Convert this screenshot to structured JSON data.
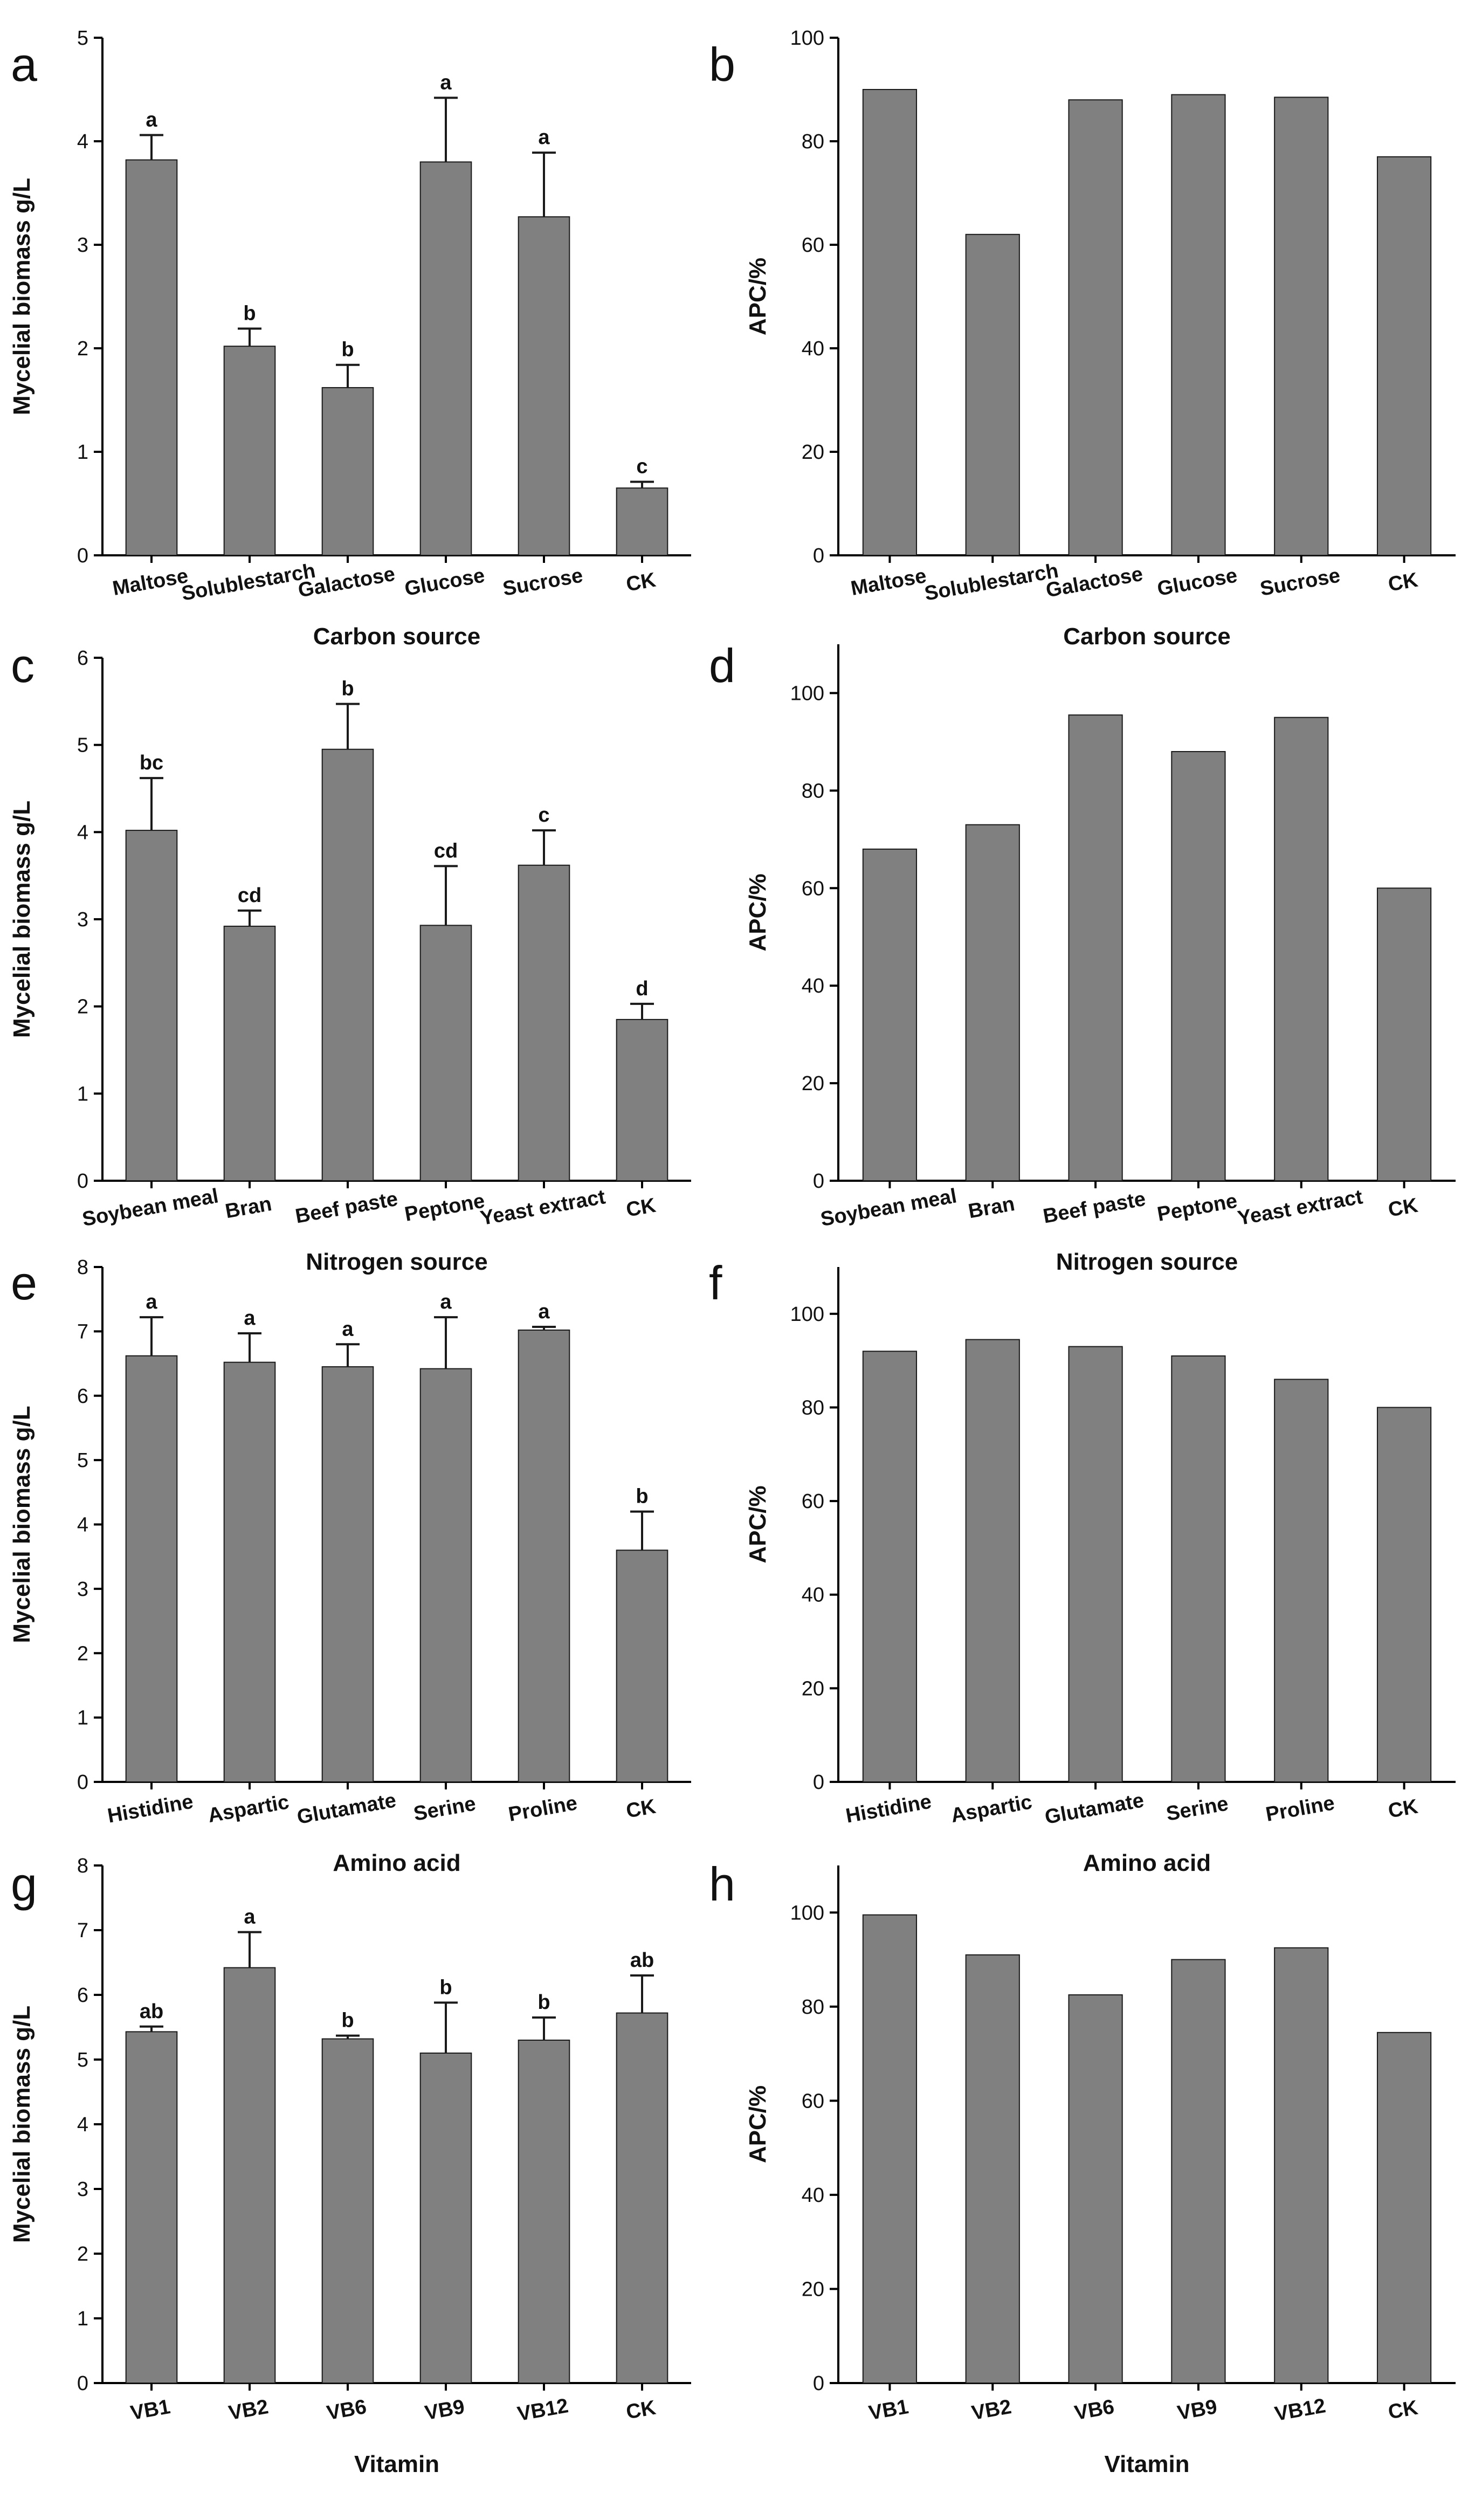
{
  "colors": {
    "bar_fill": "#808080",
    "bar_stroke": "#1a1a1a",
    "axis": "#000000"
  },
  "chart_data": [
    {
      "panel": "a",
      "type": "bar",
      "title": "",
      "xlabel": "Carbon source",
      "ylabel": "Mycelial biomass g/L",
      "ylim": [
        0,
        5
      ],
      "yticks": [
        0,
        1,
        2,
        3,
        4,
        5
      ],
      "categories": [
        "Maltose",
        "Solublestarch",
        "Galactose",
        "Glucose",
        "Sucrose",
        "CK"
      ],
      "values": [
        3.82,
        2.02,
        1.62,
        3.8,
        3.27,
        0.65
      ],
      "errors": [
        0.24,
        0.17,
        0.22,
        0.62,
        0.62,
        0.06
      ],
      "significance": [
        "a",
        "b",
        "b",
        "a",
        "a",
        "c"
      ],
      "grid": false,
      "legend": "none"
    },
    {
      "panel": "b",
      "type": "bar",
      "title": "",
      "xlabel": "Carbon source",
      "ylabel": "APC/%",
      "ylim": [
        0,
        100
      ],
      "yticks": [
        0,
        20,
        40,
        60,
        80,
        100
      ],
      "categories": [
        "Maltose",
        "Solublestarch",
        "Galactose",
        "Glucose",
        "Sucrose",
        "CK"
      ],
      "values": [
        90,
        62,
        88,
        89,
        88.5,
        77
      ],
      "grid": false,
      "legend": "none"
    },
    {
      "panel": "c",
      "type": "bar",
      "title": "",
      "xlabel": "Nitrogen source",
      "ylabel": "Mycelial biomass g/L",
      "ylim": [
        0,
        6
      ],
      "yticks": [
        0,
        1,
        2,
        3,
        4,
        5,
        6
      ],
      "categories": [
        "Soybean meal",
        "Bran",
        "Beef paste",
        "Peptone",
        "Yeast extract",
        "CK"
      ],
      "values": [
        4.02,
        2.92,
        4.95,
        2.93,
        3.62,
        1.85
      ],
      "errors": [
        0.6,
        0.18,
        0.52,
        0.68,
        0.4,
        0.18
      ],
      "significance": [
        "bc",
        "cd",
        "b",
        "cd",
        "c",
        "d"
      ],
      "grid": false,
      "legend": "none"
    },
    {
      "panel": "d",
      "type": "bar",
      "title": "",
      "xlabel": "Nitrogen source",
      "ylabel": "APC/%",
      "ylim": [
        0,
        110
      ],
      "yticks": [
        0,
        20,
        40,
        60,
        80,
        100
      ],
      "categories": [
        "Soybean meal",
        "Bran",
        "Beef paste",
        "Peptone",
        "Yeast extract",
        "CK"
      ],
      "values": [
        68,
        73,
        95.5,
        88,
        95,
        60
      ],
      "grid": false,
      "legend": "none"
    },
    {
      "panel": "e",
      "type": "bar",
      "title": "",
      "xlabel": "Amino acid",
      "ylabel": "Mycelial biomass g/L",
      "ylim": [
        0,
        8
      ],
      "yticks": [
        0,
        1,
        2,
        3,
        4,
        5,
        6,
        7,
        8
      ],
      "categories": [
        "Histidine",
        "Aspartic",
        "Glutamate",
        "Serine",
        "Proline",
        "CK"
      ],
      "values": [
        6.62,
        6.52,
        6.45,
        6.42,
        7.02,
        3.6
      ],
      "errors": [
        0.6,
        0.45,
        0.35,
        0.8,
        0.05,
        0.6
      ],
      "significance": [
        "a",
        "a",
        "a",
        "a",
        "a",
        "b"
      ],
      "grid": false,
      "legend": "none"
    },
    {
      "panel": "f",
      "type": "bar",
      "title": "",
      "xlabel": "Amino acid",
      "ylabel": "APC/%",
      "ylim": [
        0,
        110
      ],
      "yticks": [
        0,
        20,
        40,
        60,
        80,
        100
      ],
      "categories": [
        "Histidine",
        "Aspartic",
        "Glutamate",
        "Serine",
        "Proline",
        "CK"
      ],
      "values": [
        92,
        94.5,
        93,
        91,
        86,
        80
      ],
      "grid": false,
      "legend": "none"
    },
    {
      "panel": "g",
      "type": "bar",
      "title": "",
      "xlabel": "Vitamin",
      "ylabel": "Mycelial biomass g/L",
      "ylim": [
        0,
        8
      ],
      "yticks": [
        0,
        1,
        2,
        3,
        4,
        5,
        6,
        7,
        8
      ],
      "categories": [
        "VB1",
        "VB2",
        "VB6",
        "VB9",
        "VB12",
        "CK"
      ],
      "values": [
        5.43,
        6.42,
        5.32,
        5.1,
        5.3,
        5.72
      ],
      "errors": [
        0.08,
        0.55,
        0.05,
        0.78,
        0.35,
        0.58
      ],
      "significance": [
        "ab",
        "a",
        "b",
        "b",
        "b",
        "ab"
      ],
      "grid": false,
      "legend": "none"
    },
    {
      "panel": "h",
      "type": "bar",
      "title": "",
      "xlabel": "Vitamin",
      "ylabel": "APC/%",
      "ylim": [
        0,
        110
      ],
      "yticks": [
        0,
        20,
        40,
        60,
        80,
        100
      ],
      "categories": [
        "VB1",
        "VB2",
        "VB6",
        "VB9",
        "VB12",
        "CK"
      ],
      "values": [
        99.5,
        91,
        82.5,
        90,
        92.5,
        74.5
      ],
      "grid": false,
      "legend": "none"
    }
  ]
}
